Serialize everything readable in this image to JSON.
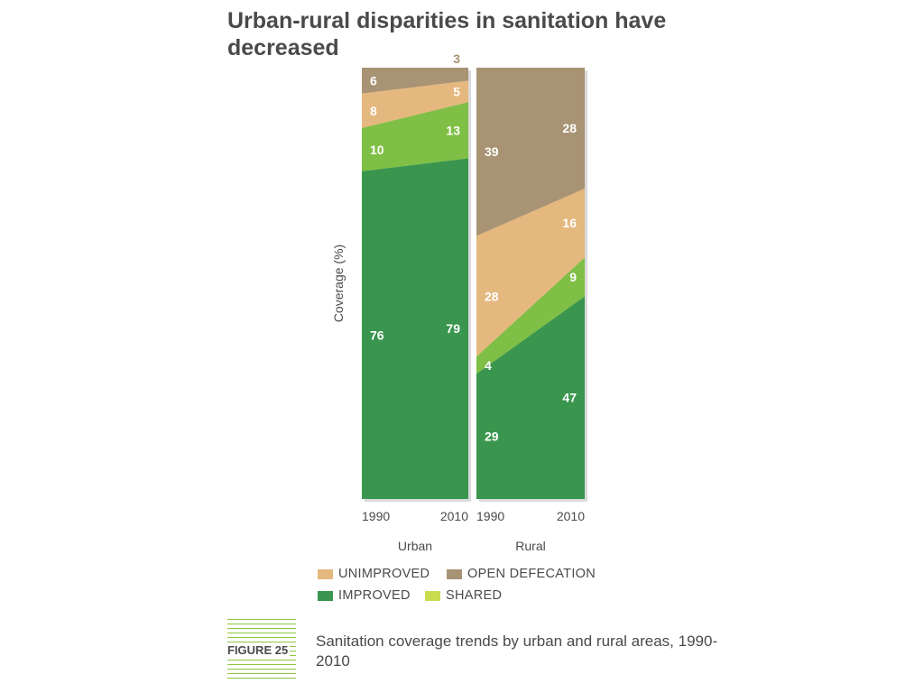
{
  "title": "Urban-rural disparities in sanitation have decreased",
  "figure": {
    "label": "FIGURE 25",
    "caption": "Sanitation coverage trends by urban and rural areas, 1990-2010"
  },
  "legend": [
    {
      "key": "unimproved",
      "label": "UNIMPROVED"
    },
    {
      "key": "open_defecation",
      "label": "OPEN DEFECATION"
    },
    {
      "key": "improved",
      "label": "IMPROVED"
    },
    {
      "key": "shared",
      "label": "SHARED"
    }
  ],
  "chart_data": {
    "type": "area",
    "ylabel": "Coverage (%)",
    "ylim": [
      0,
      100
    ],
    "grid": false,
    "legend_position": "bottom",
    "colors": {
      "improved": "#3a964e",
      "shared": "#7fbf45",
      "unimproved": "#e4b87e",
      "open_defecation": "#a89374",
      "label_text": "#ffffff",
      "outside_label": "#a89374"
    },
    "stack_order": [
      "improved",
      "shared",
      "unimproved",
      "open_defecation"
    ],
    "panels": [
      {
        "name": "Urban",
        "x": [
          "1990",
          "2010"
        ],
        "series": [
          {
            "key": "improved",
            "values": [
              76,
              79
            ]
          },
          {
            "key": "shared",
            "values": [
              10,
              13
            ]
          },
          {
            "key": "unimproved",
            "values": [
              8,
              5
            ]
          },
          {
            "key": "open_defecation",
            "values": [
              6,
              3
            ]
          }
        ]
      },
      {
        "name": "Rural",
        "x": [
          "1990",
          "2010"
        ],
        "series": [
          {
            "key": "improved",
            "values": [
              29,
              47
            ]
          },
          {
            "key": "shared",
            "values": [
              4,
              9
            ]
          },
          {
            "key": "unimproved",
            "values": [
              28,
              16
            ]
          },
          {
            "key": "open_defecation",
            "values": [
              39,
              28
            ]
          }
        ]
      }
    ]
  }
}
